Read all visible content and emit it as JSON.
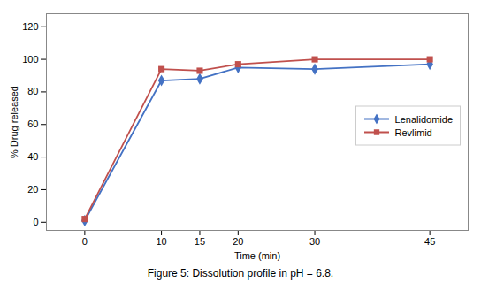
{
  "chart_data": {
    "type": "line",
    "caption": "Figure 5: Dissolution profile in pH = 6.8.",
    "xlabel": "Time (min)",
    "ylabel": "% Drug released",
    "x": [
      0,
      10,
      15,
      20,
      30,
      45
    ],
    "series": [
      {
        "name": "Lenalidomide",
        "color": "#4472C4",
        "marker": "diamond",
        "values": [
          1,
          87,
          88,
          95,
          94,
          97
        ]
      },
      {
        "name": "Revlimid",
        "color": "#C0504D",
        "marker": "square",
        "values": [
          2,
          94,
          93,
          97,
          100,
          100
        ]
      }
    ],
    "xlim": [
      -5,
      50
    ],
    "xticks": [
      0,
      10,
      15,
      20,
      30,
      45
    ],
    "ylim": [
      -5,
      128
    ],
    "yticks": [
      0,
      20,
      40,
      60,
      80,
      100,
      120
    ],
    "legend": "right",
    "grid": false
  }
}
